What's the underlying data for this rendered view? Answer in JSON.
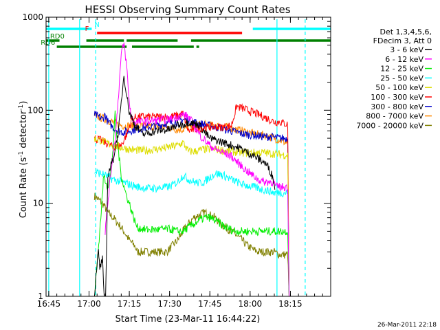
{
  "chart_data": {
    "type": "line",
    "title": "HESSI Observing Summary Count Rates",
    "xlabel": "Start Time (23-Mar-11 16:44:22)",
    "ylabel_main": "Count Rate (s",
    "ylabel_sup1": "-1",
    "ylabel_mid": " detector",
    "ylabel_sup2": "-1",
    "ylabel_end": ")",
    "yscale": "log",
    "xlim_min": [
      -1,
      105
    ],
    "ylim": [
      1,
      1000
    ],
    "x_ticks": [
      0,
      15,
      30,
      45,
      60,
      75,
      90
    ],
    "x_tick_labels": [
      "16:45",
      "17:00",
      "17:15",
      "17:30",
      "17:45",
      "18:00",
      "18:15"
    ],
    "y_ticks": [
      1,
      10,
      100,
      1000
    ],
    "y_tick_labels": [
      "1",
      "10",
      "100",
      "1000"
    ],
    "timestamp": "26-Mar-2011 22:18",
    "legend_header": [
      "Det 1,3,4,5,6,",
      "FDecim 3, Att 0"
    ],
    "series": [
      {
        "name": "3 - 6 keV",
        "color": "#000000",
        "x": [
          17,
          18,
          18.5,
          19,
          20,
          21,
          22,
          24,
          26,
          27,
          28,
          29,
          30,
          32,
          35,
          40,
          45,
          48,
          50,
          52,
          54,
          56,
          58,
          60,
          62,
          65,
          67,
          70,
          72,
          74,
          76,
          78,
          80,
          82,
          83.7,
          84.2
        ],
        "y": [
          1,
          2.3,
          3,
          2,
          2.5,
          0.5,
          20,
          30,
          60,
          120,
          240,
          150,
          95,
          70,
          55,
          60,
          62,
          70,
          70,
          75,
          72,
          70,
          58,
          50,
          48,
          45,
          43,
          40,
          38,
          35,
          33,
          30,
          28,
          24,
          18,
          14
        ]
      },
      {
        "name": "6 - 12 keV",
        "color": "#ff00ff",
        "x": [
          21,
          23,
          25,
          26,
          27,
          28,
          29,
          30,
          31,
          32,
          35,
          40,
          45,
          48,
          50,
          52,
          54,
          56,
          58,
          60,
          62,
          65,
          68,
          70,
          74,
          78,
          80,
          83.7,
          84.5,
          88,
          89,
          89.5
        ],
        "y": [
          5,
          20,
          60,
          150,
          400,
          520,
          300,
          120,
          80,
          75,
          75,
          78,
          80,
          85,
          90,
          85,
          70,
          55,
          48,
          42,
          38,
          35,
          32,
          28,
          22,
          18,
          17,
          17,
          15,
          15,
          15,
          1
        ]
      },
      {
        "name": "12 - 25 keV",
        "color": "#00ee00",
        "x": [
          17,
          19,
          20.5,
          21,
          22,
          23,
          24,
          24.7,
          25,
          26,
          27,
          28,
          29,
          30,
          31,
          32,
          33,
          36,
          40,
          44,
          46,
          48,
          50,
          52,
          54,
          56,
          58,
          60,
          62,
          64,
          66,
          68,
          70,
          73,
          76,
          79,
          82,
          84,
          86,
          88,
          89,
          89.5
        ],
        "y": [
          1,
          5,
          20,
          18,
          15,
          20,
          40,
          90,
          60,
          35,
          20,
          15,
          12,
          10,
          8,
          6.5,
          5.5,
          5.2,
          5.2,
          5.3,
          5.2,
          5.0,
          5.0,
          5.5,
          6.0,
          6.5,
          7.0,
          7.0,
          6.5,
          6.0,
          5.5,
          5.2,
          5.0,
          5.0,
          5.0,
          5.0,
          5.0,
          5.0,
          5.0,
          5.0,
          5.0,
          1
        ]
      },
      {
        "name": "25 - 50 keV",
        "color": "#00ffff",
        "x": [
          17,
          19,
          21,
          24,
          27,
          30,
          33,
          36,
          40,
          45,
          48,
          50,
          52,
          54,
          56,
          58,
          60,
          62,
          65,
          68,
          72,
          76,
          80,
          84,
          88,
          89,
          89.5
        ],
        "y": [
          22,
          21,
          20,
          18,
          17,
          16,
          15,
          14.5,
          14.5,
          15,
          17,
          20,
          18,
          17,
          16.5,
          17,
          19,
          21,
          20,
          18,
          16,
          15,
          14,
          13,
          13,
          13,
          1
        ]
      },
      {
        "name": "50 - 100 keV",
        "color": "#dddd00",
        "x": [
          17,
          19,
          21,
          24,
          27,
          30,
          33,
          36,
          40,
          45,
          48,
          50,
          52,
          54,
          56,
          58,
          60,
          62,
          65,
          68,
          72,
          76,
          80,
          84,
          88,
          89,
          89.5
        ],
        "y": [
          50,
          48,
          45,
          42,
          40,
          38,
          37,
          37,
          38,
          40,
          42,
          45,
          36,
          36,
          37,
          38,
          38,
          38,
          37,
          36,
          35,
          35,
          35,
          34,
          33,
          33,
          1
        ]
      },
      {
        "name": "100 - 300 keV",
        "color": "#ff0000",
        "x": [
          17,
          19,
          21,
          24,
          27,
          29,
          31,
          33,
          36,
          40,
          45,
          48,
          50,
          52,
          54,
          56,
          58,
          60,
          62,
          65,
          68,
          70,
          72,
          74,
          76,
          78,
          80,
          82,
          84,
          86,
          88,
          89,
          89.5
        ],
        "y": [
          50,
          48,
          45,
          40,
          42,
          55,
          80,
          85,
          85,
          85,
          85,
          88,
          92,
          60,
          62,
          64,
          65,
          66,
          66,
          66,
          68,
          110,
          105,
          100,
          95,
          90,
          85,
          80,
          75,
          75,
          72,
          70,
          1
        ]
      },
      {
        "name": "300 - 800 keV",
        "color": "#0000cc",
        "x": [
          17,
          18.5,
          20,
          21,
          22,
          24,
          26,
          28,
          30,
          32,
          36,
          40,
          44,
          48,
          50,
          52,
          54,
          56,
          58,
          60,
          62,
          64,
          66,
          68,
          70,
          72,
          74,
          76,
          78,
          80,
          82,
          84,
          86,
          88,
          89,
          89.5
        ],
        "y": [
          90,
          85,
          80,
          90,
          75,
          65,
          60,
          58,
          60,
          62,
          65,
          68,
          72,
          75,
          80,
          78,
          75,
          72,
          70,
          68,
          66,
          65,
          62,
          60,
          58,
          56,
          55,
          54,
          53,
          52,
          52,
          51,
          50,
          50,
          50,
          1
        ]
      },
      {
        "name": "800 - 7000 keV",
        "color": "#ff8800",
        "x": [
          17,
          18.5,
          20,
          21,
          22,
          24,
          26,
          28,
          30,
          32,
          36,
          40,
          44,
          46,
          48,
          50,
          52,
          54,
          56,
          58,
          60,
          62,
          64,
          66,
          68,
          70,
          72,
          74,
          76,
          78,
          80,
          82,
          84,
          86,
          88,
          89,
          89.5
        ],
        "y": [
          88,
          85,
          82,
          80,
          78,
          74,
          70,
          68,
          68,
          68,
          67,
          67,
          66,
          64,
          62,
          62,
          65,
          68,
          70,
          70,
          69,
          68,
          67,
          66,
          64,
          62,
          60,
          58,
          56,
          55,
          54,
          52,
          50,
          48,
          45,
          45,
          1
        ]
      },
      {
        "name": "7000 - 20000 keV",
        "color": "#808000",
        "x": [
          17,
          18.5,
          20,
          21,
          22,
          24,
          26,
          28,
          30,
          32,
          33,
          36,
          40,
          44,
          46,
          48,
          50,
          52,
          54,
          56,
          58,
          60,
          62,
          64,
          66,
          68,
          70,
          72,
          74,
          76,
          78,
          80,
          82,
          84,
          86,
          88,
          89,
          89.5
        ],
        "y": [
          12,
          11,
          10,
          9,
          8,
          7,
          6,
          5,
          4,
          3.5,
          3,
          3,
          3,
          3,
          3.5,
          4,
          5,
          6,
          7,
          7.5,
          8,
          7.5,
          7,
          6,
          5.5,
          5,
          4.5,
          4,
          3.5,
          3.2,
          3,
          3,
          3,
          3,
          2.8,
          2.8,
          2.8,
          1
        ]
      }
    ],
    "flag_lines": [
      {
        "label": "N",
        "color": "#00ffff",
        "segments": [
          [
            -1,
            16
          ],
          [
            76,
            105
          ]
        ],
        "level": 1
      },
      {
        "label": "F",
        "color": "#ff0000",
        "segments": [
          [
            18,
            72
          ]
        ],
        "level": 2
      },
      {
        "label": "RD0",
        "color": "#008000",
        "segments": [
          [
            -1,
            4
          ],
          [
            14,
            28
          ],
          [
            29,
            48
          ],
          [
            53,
            105
          ]
        ],
        "level": 3
      },
      {
        "label": "RD6",
        "color": "#008000",
        "segments": [
          [
            3,
            29
          ],
          [
            31,
            54
          ],
          [
            55,
            56
          ]
        ],
        "level": 4
      }
    ],
    "vlines": [
      {
        "x": 11.5,
        "color": "#00ffff",
        "style": "solid"
      },
      {
        "x": 17.5,
        "color": "#00ffff",
        "style": "dashed"
      },
      {
        "x": 85,
        "color": "#00ffff",
        "style": "solid"
      },
      {
        "x": 95.5,
        "color": "#00ffff",
        "style": "dashed"
      },
      {
        "x": 0,
        "color": "#00ffff",
        "style": "solid"
      }
    ]
  }
}
